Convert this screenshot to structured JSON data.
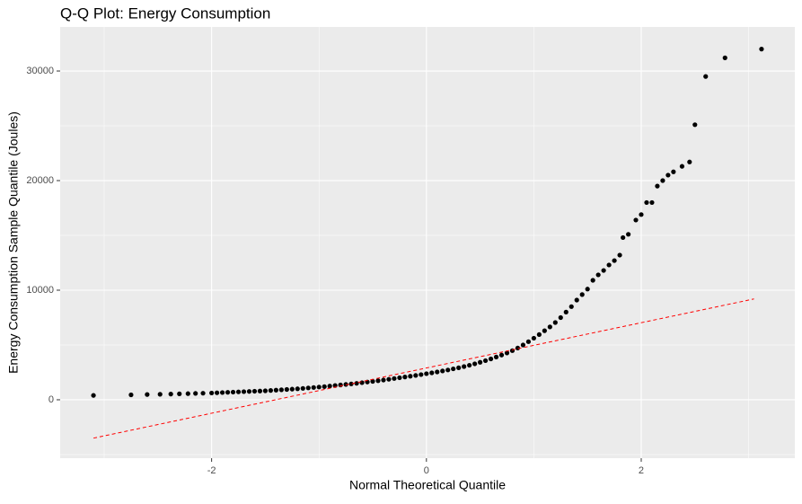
{
  "chart_data": {
    "type": "scatter",
    "title": "Q-Q Plot: Energy Consumption",
    "x_label": "Normal Theoretical Quantile",
    "y_label": "Energy Consumption Sample Quantile (Joules)",
    "x": [
      -3.1,
      -2.75,
      -2.6,
      -2.48,
      -2.38,
      -2.3,
      -2.22,
      -2.15,
      -2.08,
      -2.0,
      -1.95,
      -1.9,
      -1.85,
      -1.8,
      -1.75,
      -1.7,
      -1.65,
      -1.6,
      -1.55,
      -1.5,
      -1.45,
      -1.4,
      -1.35,
      -1.3,
      -1.25,
      -1.2,
      -1.15,
      -1.1,
      -1.05,
      -1.0,
      -0.95,
      -0.9,
      -0.85,
      -0.8,
      -0.75,
      -0.7,
      -0.65,
      -0.6,
      -0.55,
      -0.5,
      -0.45,
      -0.4,
      -0.35,
      -0.3,
      -0.25,
      -0.2,
      -0.15,
      -0.1,
      -0.05,
      0.0,
      0.05,
      0.1,
      0.15,
      0.2,
      0.25,
      0.3,
      0.35,
      0.4,
      0.45,
      0.5,
      0.55,
      0.6,
      0.65,
      0.7,
      0.75,
      0.8,
      0.85,
      0.9,
      0.95,
      1.0,
      1.05,
      1.1,
      1.15,
      1.2,
      1.25,
      1.3,
      1.35,
      1.4,
      1.45,
      1.5,
      1.55,
      1.6,
      1.65,
      1.7,
      1.75,
      1.8,
      1.83,
      1.88,
      1.95,
      2.0,
      2.05,
      2.1,
      2.15,
      2.2,
      2.25,
      2.3,
      2.38,
      2.45,
      2.5,
      2.6,
      2.78,
      3.12
    ],
    "values": [
      400,
      450,
      480,
      500,
      520,
      540,
      560,
      580,
      600,
      620,
      640,
      660,
      680,
      700,
      720,
      740,
      760,
      780,
      800,
      820,
      850,
      880,
      910,
      940,
      970,
      1000,
      1040,
      1080,
      1120,
      1160,
      1200,
      1250,
      1300,
      1350,
      1400,
      1450,
      1500,
      1560,
      1620,
      1680,
      1740,
      1800,
      1870,
      1940,
      2010,
      2080,
      2150,
      2220,
      2300,
      2380,
      2460,
      2540,
      2630,
      2720,
      2820,
      2920,
      3030,
      3150,
      3280,
      3420,
      3570,
      3730,
      3900,
      4080,
      4270,
      4480,
      4720,
      5000,
      5300,
      5620,
      5950,
      6300,
      6650,
      7050,
      7500,
      8000,
      8500,
      9100,
      9600,
      10100,
      10900,
      11400,
      11800,
      12300,
      12700,
      13200,
      14800,
      15100,
      16400,
      16900,
      18000,
      18000,
      19500,
      20000,
      20500,
      20800,
      21300,
      21700,
      25100,
      29500,
      31200,
      32000
    ],
    "color": "#000000",
    "ref_line": {
      "x": [
        -3.1,
        3.05
      ],
      "values": [
        -3500,
        9200
      ],
      "color": "#ff0000"
    },
    "xlim": [
      -3.41,
      3.43
    ],
    "ylim": [
      -5330,
      34020
    ],
    "xticks": [
      -2,
      0,
      2
    ],
    "yticks": [
      0,
      10000,
      20000,
      30000
    ],
    "minor_xticks": [
      -3,
      -1,
      1,
      3
    ],
    "minor_yticks": [
      -5000,
      5000,
      15000,
      25000,
      35000
    ],
    "grid": true
  }
}
